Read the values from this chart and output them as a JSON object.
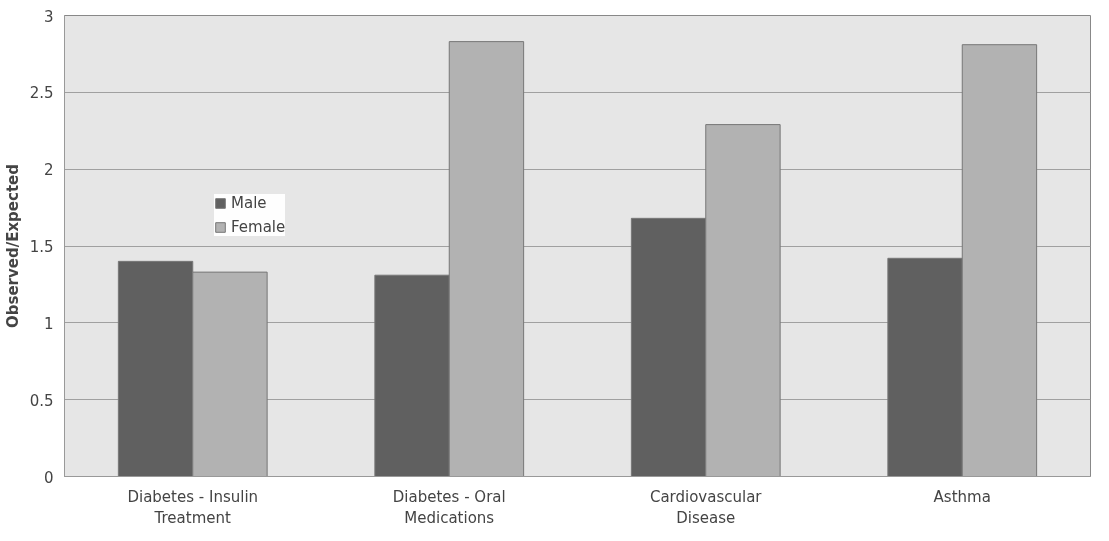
{
  "chart_data": {
    "type": "bar",
    "ylabel": "Observed/Expected",
    "categories": [
      "Diabetes - Insulin Treatment",
      "Diabetes - Oral Medications",
      "Cardiovascular Disease",
      "Asthma"
    ],
    "series": [
      {
        "name": "Male",
        "color": "#606060",
        "values": [
          1.4,
          1.31,
          1.68,
          1.42
        ]
      },
      {
        "name": "Female",
        "color": "#b2b2b2",
        "values": [
          1.33,
          2.83,
          2.29,
          2.81
        ]
      }
    ],
    "ylim": [
      0,
      3
    ],
    "yticks": [
      0,
      0.5,
      1,
      1.5,
      2,
      2.5,
      3
    ],
    "grid": "y",
    "legend": "top left"
  }
}
